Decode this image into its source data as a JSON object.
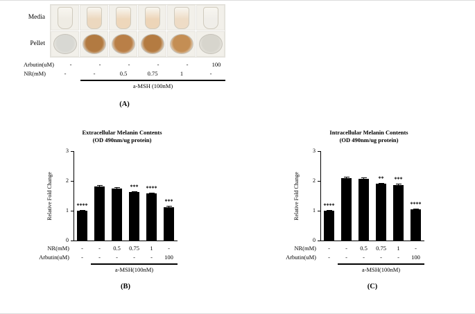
{
  "panel_a": {
    "row_labels": [
      "Media",
      "Pellet"
    ],
    "media_colors": [
      "#efece4",
      "#ecd8bf",
      "#eed7bb",
      "#edd5b8",
      "#eedcc6",
      "#f0eee9"
    ],
    "pellet_colors": [
      "#d8d8d3",
      "#b27a41",
      "#b97f47",
      "#b47b41",
      "#c48e54",
      "#d7d5cd"
    ],
    "dose_rows": [
      {
        "label": "Arbutin(uM)",
        "values": [
          "-",
          "-",
          "-",
          "-",
          "-",
          "100"
        ]
      },
      {
        "label": "NR(mM)",
        "values": [
          "-",
          "-",
          "0.5",
          "0.75",
          "1",
          "-"
        ]
      }
    ],
    "group_label": "a-MSH (100nM)",
    "tag": "(A)"
  },
  "chart_data": [
    {
      "type": "bar",
      "tag": "(B)",
      "title": "Extracellular Melanin Contents",
      "subtitle": "(OD 490nm/ug protein)",
      "ylabel": "Relative Fold Change",
      "ylim": [
        0,
        3
      ],
      "yticks": [
        0,
        1,
        2,
        3
      ],
      "values": [
        1.0,
        1.82,
        1.75,
        1.62,
        1.57,
        1.12
      ],
      "errors": [
        0.03,
        0.05,
        0.04,
        0.04,
        0.04,
        0.04
      ],
      "significance": [
        "****",
        "",
        "",
        "***",
        "****",
        "***"
      ],
      "bar_color": "#000000",
      "x_rows": [
        {
          "label": "NR(mM)",
          "values": [
            "-",
            "-",
            "0.5",
            "0.75",
            "1",
            "-"
          ]
        },
        {
          "label": "Arbutin(uM)",
          "values": [
            "-",
            "-",
            "-",
            "-",
            "-",
            "100"
          ]
        }
      ],
      "group_label": "a-MSH(100nM)",
      "grid": false,
      "legend": "none"
    },
    {
      "type": "bar",
      "tag": "(C)",
      "title": "Intracellular Melanin Contents",
      "subtitle": "(OD 490nm/ug protein)",
      "ylabel": "Relative Fold Change",
      "ylim": [
        0,
        3
      ],
      "yticks": [
        0,
        1,
        2,
        3
      ],
      "values": [
        1.0,
        2.1,
        2.08,
        1.9,
        1.86,
        1.05
      ],
      "errors": [
        0.03,
        0.04,
        0.04,
        0.04,
        0.04,
        0.03
      ],
      "significance": [
        "****",
        "",
        "",
        "**",
        "***",
        "****"
      ],
      "bar_color": "#000000",
      "x_rows": [
        {
          "label": "NR(mM)",
          "values": [
            "-",
            "-",
            "0.5",
            "0.75",
            "1",
            "-"
          ]
        },
        {
          "label": "Arbutin(uM)",
          "values": [
            "-",
            "-",
            "-",
            "-",
            "-",
            "100"
          ]
        }
      ],
      "group_label": "a-MSH(100nM)",
      "grid": false,
      "legend": "none"
    }
  ]
}
